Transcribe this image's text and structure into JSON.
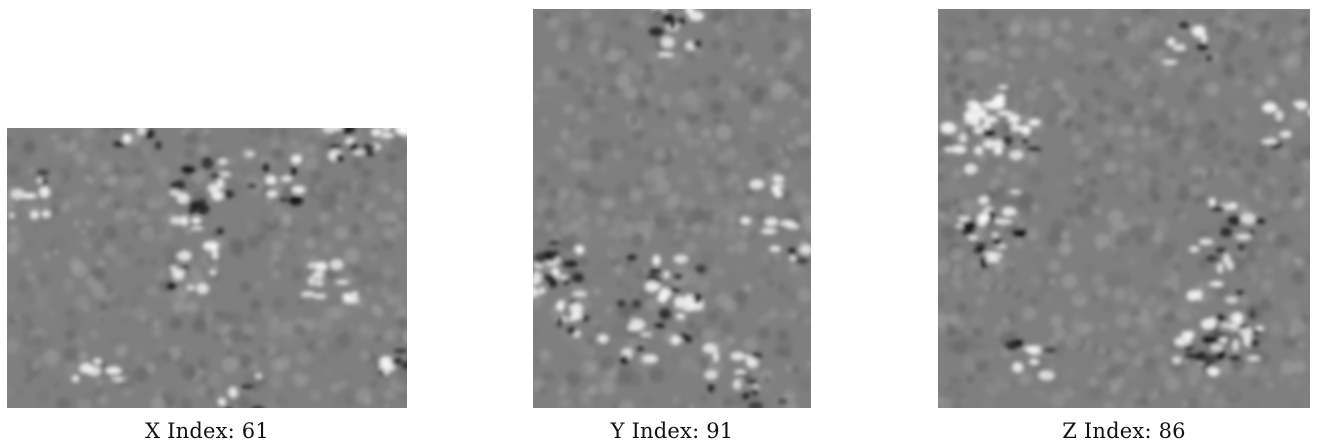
{
  "slices": [
    {
      "axis": "x",
      "caption": "X Index: 61",
      "seed": 61
    },
    {
      "axis": "y",
      "caption": "Y Index: 91",
      "seed": 91
    },
    {
      "axis": "z",
      "caption": "Z Index: 86",
      "seed": 86
    }
  ]
}
